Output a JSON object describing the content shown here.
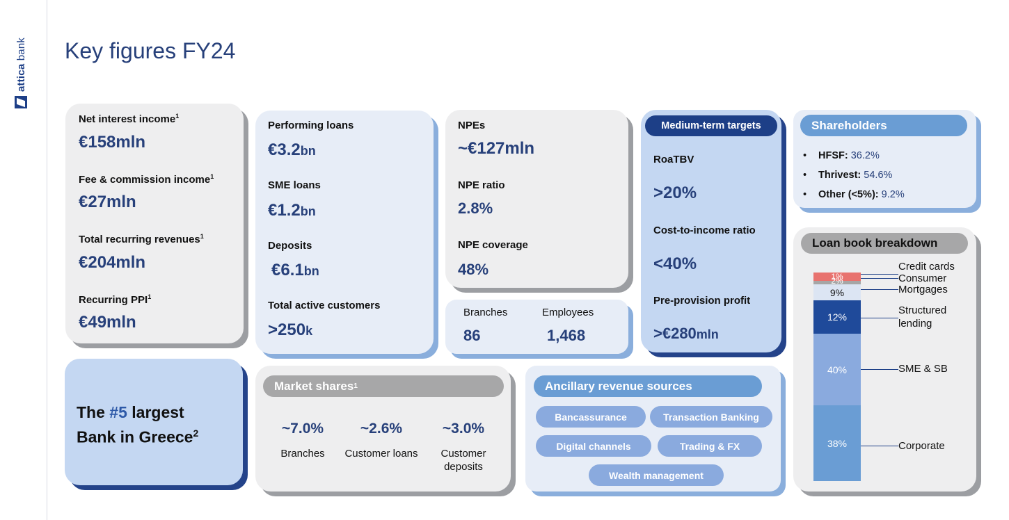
{
  "logo": {
    "brand_bold": "attica",
    "brand_light": "bank"
  },
  "title": "Key figures FY24",
  "income": [
    {
      "label": "Net interest income",
      "sup": "1",
      "value": "€158mln"
    },
    {
      "label": "Fee & commission income",
      "sup": "1",
      "value": "€27mln"
    },
    {
      "label": "Total recurring revenues",
      "sup": "1",
      "value": "€204mln"
    },
    {
      "label": "Recurring PPI",
      "sup": "1",
      "value": "€49mln"
    }
  ],
  "balance": [
    {
      "label": "Performing loans",
      "value": "€3.2",
      "unit": "bn"
    },
    {
      "label": "SME loans",
      "value": "€1.2",
      "unit": "bn"
    },
    {
      "label": "Deposits",
      "value": "€6.1",
      "unit": "bn"
    },
    {
      "label": "Total active customers",
      "value": ">250",
      "unit": "k"
    }
  ],
  "npe": [
    {
      "label": "NPEs",
      "value": "~€127mln"
    },
    {
      "label": "NPE ratio",
      "value": "2.8%"
    },
    {
      "label": "NPE coverage",
      "value": "48%"
    }
  ],
  "network": {
    "branches_label": "Branches",
    "branches_value": "86",
    "employees_label": "Employees",
    "employees_value": "1,468"
  },
  "targets": {
    "header": "Medium-term targets",
    "items": [
      {
        "label": "RoaTBV",
        "value": ">20%",
        "unit": ""
      },
      {
        "label": "Cost-to-income ratio",
        "value": "<40%",
        "unit": ""
      },
      {
        "label": "Pre-provision profit",
        "value": ">€280",
        "unit": "mln"
      }
    ]
  },
  "shareholders": {
    "header": "Shareholders",
    "items": [
      {
        "name": "HFSF:",
        "pct": "36.2%"
      },
      {
        "name": "Thrivest:",
        "pct": "54.6%"
      },
      {
        "name": "Other (<5%):",
        "pct": "9.2%"
      }
    ]
  },
  "rank": {
    "pre": "The ",
    "highlight": "#5",
    "post": " largest",
    "line2": "Bank in Greece",
    "sup": "2"
  },
  "market_shares": {
    "header": "Market shares",
    "sup": "1",
    "items": [
      {
        "value": "~7.0%",
        "label": "Branches"
      },
      {
        "value": "~2.6%",
        "label": "Customer loans"
      },
      {
        "value": "~3.0%",
        "label": "Customer deposits"
      }
    ]
  },
  "ancillary": {
    "header": "Ancillary revenue sources",
    "tags": [
      "Bancassurance",
      "Transaction Banking",
      "Digital channels",
      "Trading & FX",
      "Wealth management"
    ]
  },
  "loan_book": {
    "header": "Loan book breakdown",
    "colors": {
      "credit_cards": "#e8726e",
      "consumer": "#a6a6a6",
      "mortgages": "#dce5f3",
      "structured": "#1f4a9a",
      "sme": "#8aaade",
      "corporate": "#6a9dd4"
    }
  },
  "chart_data": {
    "type": "bar",
    "stacked": true,
    "title": "Loan book breakdown",
    "categories": [
      "Loan book"
    ],
    "series": [
      {
        "name": "Corporate",
        "values": [
          38
        ],
        "label": "38%"
      },
      {
        "name": "SME & SB",
        "values": [
          40
        ],
        "label": "40%"
      },
      {
        "name": "Structured lending",
        "values": [
          12
        ],
        "label": "12%"
      },
      {
        "name": "Mortgages",
        "values": [
          9
        ],
        "label": "9%"
      },
      {
        "name": "Consumer",
        "values": [
          2
        ],
        "label": "2%"
      },
      {
        "name": "Credit cards",
        "values": [
          1
        ],
        "label": "1%"
      }
    ],
    "ylim": [
      0,
      100
    ]
  }
}
